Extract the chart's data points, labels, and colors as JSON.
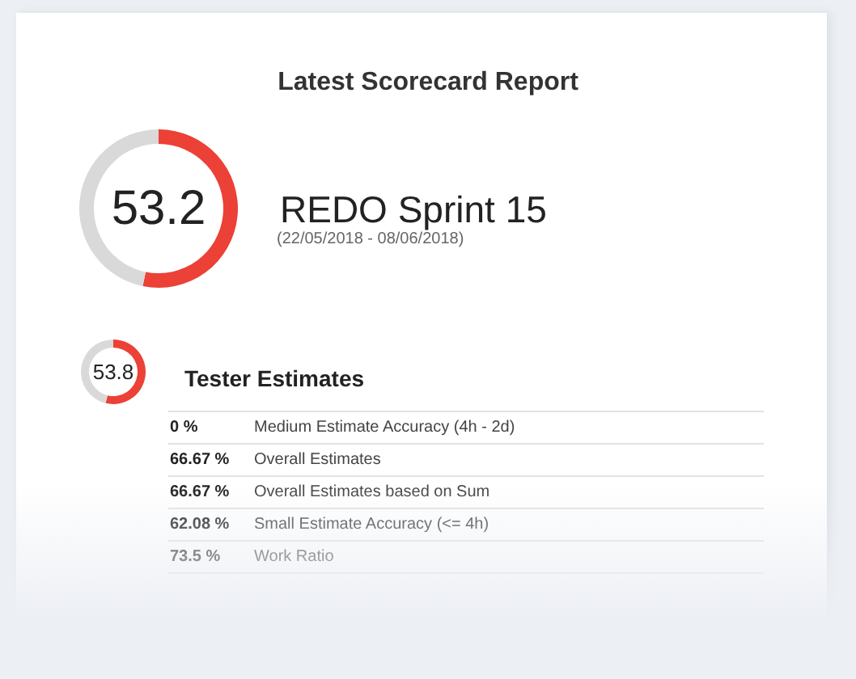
{
  "chart_data": [
    {
      "type": "donut",
      "title": "Latest Scorecard Report",
      "subtitle": "REDO Sprint 15",
      "annotations": [
        "(22/05/2018 - 08/06/2018)"
      ],
      "categories": [
        null,
        null
      ],
      "values": [
        53.2,
        46.8
      ],
      "value_labels": [
        "53.2",
        null
      ],
      "colors": [
        "#eb4136",
        "#d9d9d9"
      ]
    },
    {
      "type": "donut",
      "title": "Tester Estimates",
      "categories": [
        null,
        null
      ],
      "values": [
        53.8,
        46.2
      ],
      "value_labels": [
        "53.8",
        null
      ],
      "colors": [
        "#eb4136",
        "#d9d9d9"
      ]
    },
    {
      "type": "other",
      "categories": [
        "Medium Estimate Accuracy (4h - 2d)",
        "Overall Estimates",
        "Overall Estimates based on Sum",
        "Small Estimate Accuracy (<= 4h)",
        "Work Ratio"
      ],
      "value_labels": [
        "0 %",
        "66.67 %",
        "66.67 %",
        "62.08 %",
        "73.5 %"
      ]
    }
  ]
}
